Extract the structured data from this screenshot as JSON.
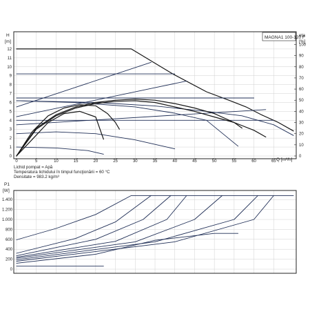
{
  "chart_data": [
    {
      "type": "line",
      "title": "MAGNA1 100-120 F",
      "y_label_lines": [
        "H",
        "[m]"
      ],
      "y2_label_lines": [
        "eta",
        "[%]"
      ],
      "xlabel": "Q [m³/h]",
      "xlim": [
        0,
        70
      ],
      "ylim": [
        0,
        13
      ],
      "y2lim": [
        0,
        104
      ],
      "x_ticks": [
        0,
        5,
        10,
        15,
        20,
        25,
        30,
        35,
        40,
        45,
        50,
        55,
        60,
        65
      ],
      "y_ticks": [
        0,
        1,
        2,
        3,
        4,
        5,
        6,
        7,
        8,
        9,
        10,
        11,
        12
      ],
      "y2_ticks": [
        0,
        10,
        20,
        30,
        40,
        50,
        60,
        70,
        80,
        90,
        100
      ],
      "grid": true,
      "series": [
        {
          "group": "head-max-constant-curve",
          "points": [
            [
              0,
              12
            ],
            [
              29,
              12
            ],
            [
              39.5,
              9.2
            ],
            [
              48,
              7.2
            ],
            [
              54,
              6.2
            ],
            [
              58,
              5.5
            ],
            [
              62,
              4.6
            ],
            [
              66,
              3.8
            ],
            [
              70,
              2.8
            ]
          ]
        },
        {
          "group": "proportional-pressure",
          "points": [
            [
              0,
              5.5
            ],
            [
              34,
              10.5
            ]
          ]
        },
        {
          "group": "proportional-pressure",
          "points": [
            [
              0,
              4.4
            ],
            [
              43,
              8.4
            ]
          ]
        },
        {
          "group": "proportional-pressure",
          "points": [
            [
              0,
              3.5
            ],
            [
              63,
              5.2
            ]
          ]
        },
        {
          "group": "constant-pressure",
          "points": [
            [
              0,
              9.2
            ],
            [
              40,
              9.2
            ]
          ]
        },
        {
          "group": "constant-pressure",
          "points": [
            [
              0,
              6.5
            ],
            [
              60,
              6.5
            ]
          ]
        },
        {
          "group": "constant-pressure",
          "points": [
            [
              0,
              4.0
            ],
            [
              65,
              4.0
            ]
          ]
        },
        {
          "group": "pump-curves",
          "points": [
            [
              0,
              6.2
            ],
            [
              15,
              6.0
            ],
            [
              30,
              5.5
            ],
            [
              40,
              4.8
            ],
            [
              48,
              4.0
            ],
            [
              56,
              1.1
            ]
          ]
        },
        {
          "group": "pump-curves",
          "points": [
            [
              0,
              6.2
            ],
            [
              20,
              6.0
            ],
            [
              35,
              5.6
            ],
            [
              48,
              5.0
            ],
            [
              57,
              4.5
            ],
            [
              65,
              3.5
            ],
            [
              70,
              2.3
            ]
          ]
        },
        {
          "group": "pump-curves",
          "points": [
            [
              0,
              2.5
            ],
            [
              10,
              2.7
            ],
            [
              20,
              2.5
            ],
            [
              30,
              1.8
            ],
            [
              40,
              0.8
            ]
          ]
        },
        {
          "group": "pump-curves",
          "points": [
            [
              0,
              1.0
            ],
            [
              10,
              0.9
            ],
            [
              18,
              0.6
            ],
            [
              22,
              0.2
            ]
          ]
        },
        {
          "group": "efficiency",
          "points": [
            [
              0,
              0
            ],
            [
              5,
              24
            ],
            [
              10,
              36
            ],
            [
              15,
              43
            ],
            [
              20,
              47
            ],
            [
              25,
              49
            ],
            [
              30,
              49.5
            ],
            [
              35,
              48
            ],
            [
              40,
              44
            ],
            [
              45,
              40
            ],
            [
              50,
              35
            ],
            [
              55,
              30
            ],
            [
              60,
              23
            ],
            [
              63,
              17
            ]
          ]
        },
        {
          "group": "efficiency",
          "points": [
            [
              0,
              0
            ],
            [
              5,
              25
            ],
            [
              10,
              37
            ],
            [
              15,
              44
            ],
            [
              20,
              48
            ],
            [
              25,
              50
            ],
            [
              30,
              51
            ],
            [
              35,
              50
            ],
            [
              40,
              47
            ],
            [
              45,
              43
            ],
            [
              50,
              38
            ],
            [
              55,
              30
            ],
            [
              57,
              25
            ]
          ]
        },
        {
          "group": "efficiency",
          "points": [
            [
              0,
              0
            ],
            [
              4,
              22
            ],
            [
              8,
              36
            ],
            [
              12,
              43
            ],
            [
              16,
              46
            ],
            [
              20,
              45
            ],
            [
              23,
              38
            ],
            [
              25,
              30
            ],
            [
              26,
              24
            ]
          ]
        },
        {
          "group": "efficiency",
          "points": [
            [
              0,
              0
            ],
            [
              4,
              15
            ],
            [
              8,
              30
            ],
            [
              12,
              38
            ],
            [
              16,
              40
            ],
            [
              20,
              35
            ],
            [
              22,
              15
            ]
          ]
        }
      ]
    },
    {
      "type": "line",
      "title": "",
      "y_label_lines": [
        "P1",
        "[W]"
      ],
      "xlim": [
        0,
        70
      ],
      "ylim": [
        0,
        1500
      ],
      "y_ticks": [
        0,
        200,
        400,
        600,
        800,
        1000,
        1200,
        1400
      ],
      "y_tick_labels": [
        "0",
        "200",
        "400",
        "600",
        "800",
        "1.000",
        "1.200",
        "1.400"
      ],
      "grid": true,
      "series": [
        {
          "points": [
            [
              0,
              590
            ],
            [
              10,
              820
            ],
            [
              20,
              1100
            ],
            [
              29,
              1480
            ],
            [
              70,
              1480
            ]
          ]
        },
        {
          "points": [
            [
              0,
              320
            ],
            [
              15,
              620
            ],
            [
              25,
              950
            ],
            [
              34,
              1480
            ]
          ]
        },
        {
          "points": [
            [
              0,
              270
            ],
            [
              20,
              600
            ],
            [
              32,
              1000
            ],
            [
              39,
              1480
            ]
          ]
        },
        {
          "points": [
            [
              0,
              240
            ],
            [
              25,
              560
            ],
            [
              38,
              1000
            ],
            [
              43,
              1480
            ]
          ]
        },
        {
          "points": [
            [
              0,
              220
            ],
            [
              30,
              550
            ],
            [
              45,
              1000
            ],
            [
              52,
              1480
            ]
          ]
        },
        {
          "points": [
            [
              0,
              190
            ],
            [
              35,
              550
            ],
            [
              55,
              1000
            ],
            [
              61,
              1480
            ]
          ]
        },
        {
          "points": [
            [
              0,
              160
            ],
            [
              40,
              550
            ],
            [
              60,
              1000
            ],
            [
              65,
              1480
            ]
          ]
        },
        {
          "points": [
            [
              0,
              120
            ],
            [
              20,
              300
            ],
            [
              35,
              580
            ],
            [
              50,
              720
            ],
            [
              56,
              720
            ]
          ]
        },
        {
          "points": [
            [
              0,
              60
            ],
            [
              22,
              60
            ]
          ]
        }
      ]
    }
  ],
  "notes": {
    "line1": "Lichid pompat = Apă",
    "line2": "Temperatura lichidului în timpul funcţionării = 60 °C",
    "line3": "Densitate = 983.2 kg/m³"
  },
  "colors": {
    "curve": "#1e2d55",
    "bold_curve": "#151515",
    "grid": "#d0d0d0",
    "axis": "#222222"
  }
}
